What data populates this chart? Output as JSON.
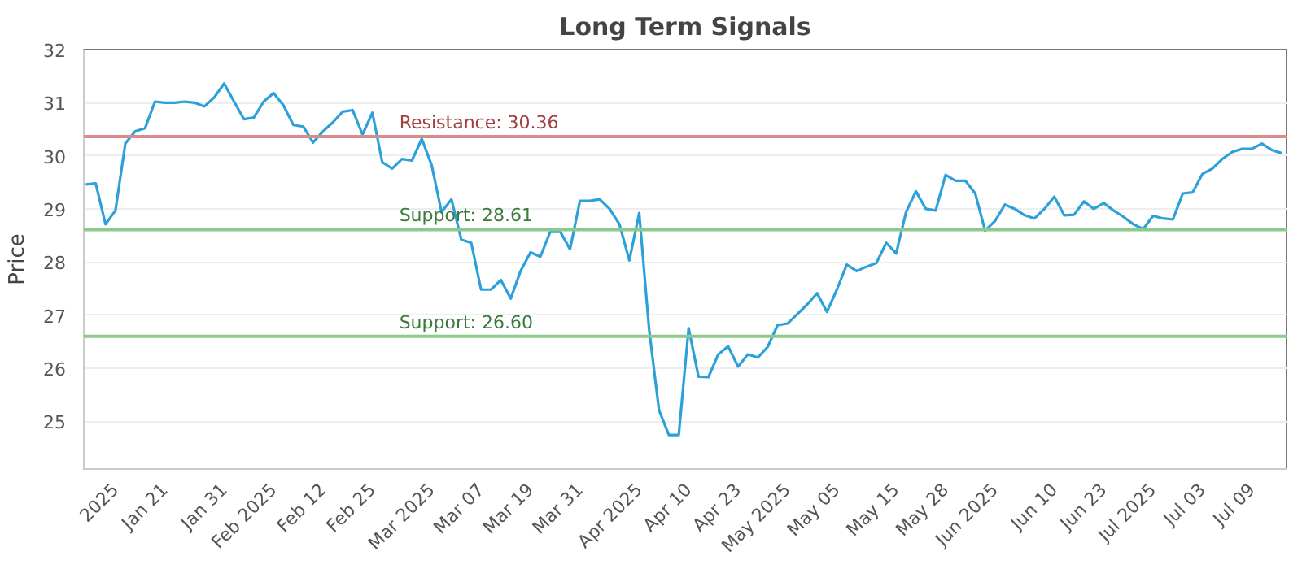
{
  "chart_data": {
    "type": "line",
    "title": "Long Term Signals",
    "ylabel": "Price",
    "categories": [
      null,
      null,
      null,
      "2025",
      null,
      null,
      null,
      null,
      "Jan 21",
      null,
      null,
      null,
      null,
      null,
      "Jan 31",
      null,
      null,
      null,
      null,
      "Feb 2025",
      null,
      null,
      null,
      null,
      "Feb 12",
      null,
      null,
      null,
      null,
      "Feb 25",
      null,
      null,
      null,
      null,
      null,
      "Mar 2025",
      null,
      null,
      null,
      null,
      "Mar 07",
      null,
      null,
      null,
      null,
      "Mar 19",
      null,
      null,
      null,
      null,
      "Mar 31",
      null,
      null,
      null,
      null,
      null,
      "Apr 2025",
      null,
      null,
      null,
      null,
      "Apr 10",
      null,
      null,
      null,
      null,
      "Apr 23",
      null,
      null,
      null,
      null,
      "May 2025",
      null,
      null,
      null,
      null,
      "May 05",
      null,
      null,
      null,
      null,
      null,
      "May 15",
      null,
      null,
      null,
      null,
      "May 28",
      null,
      null,
      null,
      null,
      "Jun 2025",
      null,
      null,
      null,
      null,
      null,
      "Jun 10",
      null,
      null,
      null,
      null,
      "Jun 23",
      null,
      null,
      null,
      null,
      "Jul 2025",
      null,
      null,
      null,
      null,
      "Jul 03",
      null,
      null,
      null,
      null,
      "Jul 09",
      null,
      null,
      null
    ],
    "series": [
      {
        "color": "#2ca0d8",
        "values": [
          29.46,
          29.48,
          28.71,
          28.97,
          30.23,
          30.46,
          30.52,
          31.02,
          31.0,
          31.0,
          31.02,
          31.0,
          30.93,
          31.1,
          31.36,
          31.02,
          30.69,
          30.72,
          31.02,
          31.18,
          30.95,
          30.58,
          30.55,
          30.25,
          30.46,
          30.63,
          30.83,
          30.86,
          30.4,
          30.81,
          29.88,
          29.76,
          29.94,
          29.91,
          30.32,
          29.82,
          28.94,
          29.18,
          28.42,
          28.36,
          27.48,
          27.48,
          27.66,
          27.31,
          27.83,
          28.18,
          28.1,
          28.57,
          28.57,
          28.24,
          29.15,
          29.15,
          29.18,
          29.0,
          28.71,
          28.03,
          28.92,
          26.73,
          25.21,
          24.74,
          24.74,
          26.75,
          25.84,
          25.83,
          26.26,
          26.41,
          26.03,
          26.26,
          26.2,
          26.4,
          26.81,
          26.84,
          27.02,
          27.2,
          27.41,
          27.06,
          27.48,
          27.95,
          27.83,
          27.91,
          27.98,
          28.36,
          28.16,
          28.94,
          29.33,
          29.0,
          28.97,
          29.64,
          29.53,
          29.53,
          29.29,
          28.59,
          28.77,
          29.08,
          29.0,
          28.88,
          28.82,
          29.0,
          29.23,
          28.88,
          28.89,
          29.14,
          29.0,
          29.11,
          28.97,
          28.85,
          28.71,
          28.62,
          28.87,
          28.82,
          28.8,
          29.29,
          29.31,
          29.66,
          29.76,
          29.94,
          30.07,
          30.13,
          30.13,
          30.23,
          30.11,
          30.05
        ]
      }
    ],
    "ylim": [
      24.1,
      32
    ],
    "yticks": [
      25,
      26,
      27,
      28,
      29,
      30,
      31,
      32
    ],
    "grid": "y",
    "marker": "none",
    "line_style": "solid",
    "ref_lines": [
      {
        "axis": "y",
        "value": 30.36,
        "label": "Resistance: 30.36",
        "color": "#d98a8a"
      },
      {
        "axis": "y",
        "value": 28.61,
        "label": "Support: 28.61",
        "color": "#8cc98c"
      },
      {
        "axis": "y",
        "value": 26.6,
        "label": "Support: 26.60",
        "color": "#8cc98c"
      }
    ]
  }
}
